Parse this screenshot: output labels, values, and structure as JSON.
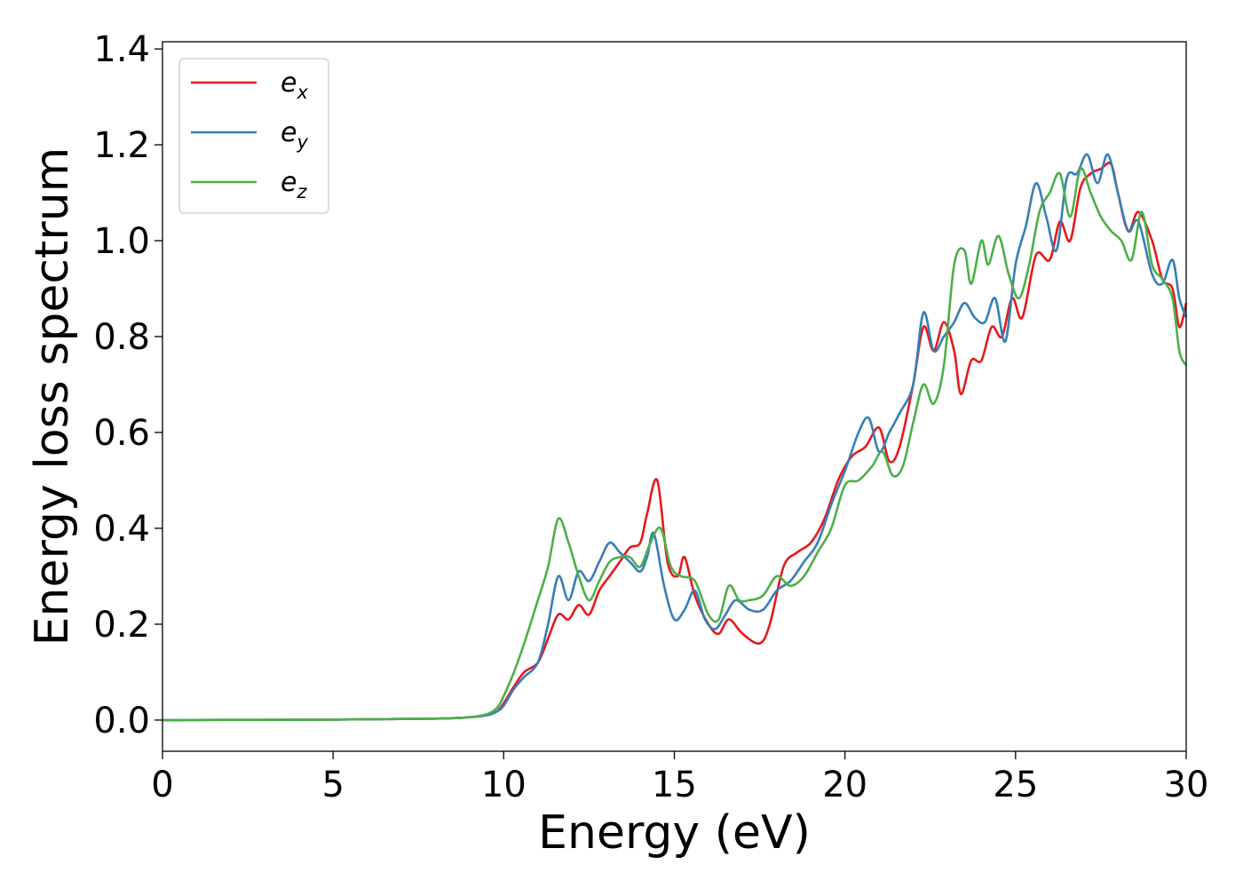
{
  "chart_data": {
    "type": "line",
    "xlabel": "Energy (eV)",
    "ylabel": "Energy loss spectrum",
    "xlim": [
      0,
      30
    ],
    "ylim": [
      -0.065,
      1.415
    ],
    "xticks": [
      "0",
      "5",
      "10",
      "15",
      "20",
      "25",
      "30"
    ],
    "yticks": [
      "0.0",
      "0.2",
      "0.4",
      "0.6",
      "0.8",
      "1.0",
      "1.2",
      "1.4"
    ],
    "grid": false,
    "legend_position": "top-left",
    "series": [
      {
        "name": "e",
        "subscript": "x",
        "color": "#e41a1c",
        "points": [
          [
            0,
            0.0
          ],
          [
            5,
            0.001
          ],
          [
            8,
            0.003
          ],
          [
            9,
            0.006
          ],
          [
            9.5,
            0.01
          ],
          [
            9.8,
            0.018
          ],
          [
            10,
            0.035
          ],
          [
            10.3,
            0.07
          ],
          [
            10.6,
            0.1
          ],
          [
            11,
            0.12
          ],
          [
            11.3,
            0.17
          ],
          [
            11.6,
            0.22
          ],
          [
            11.9,
            0.21
          ],
          [
            12.2,
            0.24
          ],
          [
            12.5,
            0.22
          ],
          [
            12.8,
            0.27
          ],
          [
            13.1,
            0.3
          ],
          [
            13.4,
            0.33
          ],
          [
            13.7,
            0.36
          ],
          [
            14,
            0.37
          ],
          [
            14.2,
            0.43
          ],
          [
            14.5,
            0.5
          ],
          [
            14.8,
            0.33
          ],
          [
            15.1,
            0.3
          ],
          [
            15.3,
            0.34
          ],
          [
            15.6,
            0.26
          ],
          [
            16,
            0.2
          ],
          [
            16.3,
            0.18
          ],
          [
            16.6,
            0.21
          ],
          [
            17,
            0.18
          ],
          [
            17.5,
            0.16
          ],
          [
            17.8,
            0.2
          ],
          [
            18.2,
            0.32
          ],
          [
            18.6,
            0.35
          ],
          [
            19,
            0.37
          ],
          [
            19.4,
            0.42
          ],
          [
            19.8,
            0.5
          ],
          [
            20.2,
            0.55
          ],
          [
            20.6,
            0.57
          ],
          [
            21,
            0.61
          ],
          [
            21.3,
            0.54
          ],
          [
            21.6,
            0.57
          ],
          [
            22,
            0.7
          ],
          [
            22.3,
            0.82
          ],
          [
            22.6,
            0.77
          ],
          [
            22.9,
            0.83
          ],
          [
            23.2,
            0.77
          ],
          [
            23.4,
            0.68
          ],
          [
            23.7,
            0.75
          ],
          [
            24,
            0.75
          ],
          [
            24.3,
            0.82
          ],
          [
            24.6,
            0.8
          ],
          [
            24.9,
            0.88
          ],
          [
            25.2,
            0.84
          ],
          [
            25.6,
            0.97
          ],
          [
            26,
            0.96
          ],
          [
            26.3,
            1.04
          ],
          [
            26.6,
            1.0
          ],
          [
            26.9,
            1.11
          ],
          [
            27.2,
            1.14
          ],
          [
            27.5,
            1.15
          ],
          [
            27.8,
            1.16
          ],
          [
            28,
            1.1
          ],
          [
            28.3,
            1.02
          ],
          [
            28.6,
            1.06
          ],
          [
            29,
            1.0
          ],
          [
            29.3,
            0.92
          ],
          [
            29.6,
            0.9
          ],
          [
            29.8,
            0.82
          ],
          [
            30,
            0.87
          ]
        ]
      },
      {
        "name": "e",
        "subscript": "y",
        "color": "#377eb8",
        "points": [
          [
            0,
            0.0
          ],
          [
            5,
            0.001
          ],
          [
            8,
            0.003
          ],
          [
            9,
            0.006
          ],
          [
            9.5,
            0.01
          ],
          [
            9.8,
            0.018
          ],
          [
            10,
            0.03
          ],
          [
            10.3,
            0.065
          ],
          [
            10.6,
            0.09
          ],
          [
            11,
            0.12
          ],
          [
            11.3,
            0.2
          ],
          [
            11.6,
            0.3
          ],
          [
            11.9,
            0.25
          ],
          [
            12.2,
            0.31
          ],
          [
            12.5,
            0.29
          ],
          [
            12.8,
            0.33
          ],
          [
            13.1,
            0.37
          ],
          [
            13.4,
            0.35
          ],
          [
            13.7,
            0.33
          ],
          [
            14,
            0.31
          ],
          [
            14.2,
            0.34
          ],
          [
            14.4,
            0.39
          ],
          [
            14.7,
            0.28
          ],
          [
            15,
            0.21
          ],
          [
            15.3,
            0.23
          ],
          [
            15.6,
            0.27
          ],
          [
            15.9,
            0.21
          ],
          [
            16.2,
            0.19
          ],
          [
            16.5,
            0.22
          ],
          [
            16.8,
            0.25
          ],
          [
            17.2,
            0.23
          ],
          [
            17.6,
            0.23
          ],
          [
            18,
            0.27
          ],
          [
            18.4,
            0.29
          ],
          [
            18.8,
            0.33
          ],
          [
            19.2,
            0.37
          ],
          [
            19.6,
            0.45
          ],
          [
            20,
            0.52
          ],
          [
            20.4,
            0.6
          ],
          [
            20.7,
            0.63
          ],
          [
            21,
            0.56
          ],
          [
            21.3,
            0.6
          ],
          [
            21.6,
            0.64
          ],
          [
            22,
            0.7
          ],
          [
            22.3,
            0.85
          ],
          [
            22.6,
            0.77
          ],
          [
            22.9,
            0.8
          ],
          [
            23.2,
            0.83
          ],
          [
            23.5,
            0.87
          ],
          [
            23.8,
            0.84
          ],
          [
            24.1,
            0.83
          ],
          [
            24.4,
            0.88
          ],
          [
            24.7,
            0.79
          ],
          [
            25,
            0.95
          ],
          [
            25.3,
            1.03
          ],
          [
            25.6,
            1.12
          ],
          [
            25.9,
            1.05
          ],
          [
            26.2,
            0.98
          ],
          [
            26.5,
            1.13
          ],
          [
            26.8,
            1.14
          ],
          [
            27.1,
            1.18
          ],
          [
            27.4,
            1.12
          ],
          [
            27.7,
            1.18
          ],
          [
            28,
            1.1
          ],
          [
            28.3,
            1.02
          ],
          [
            28.6,
            1.04
          ],
          [
            29,
            0.93
          ],
          [
            29.3,
            0.91
          ],
          [
            29.6,
            0.96
          ],
          [
            29.8,
            0.88
          ],
          [
            30,
            0.84
          ]
        ]
      },
      {
        "name": "e",
        "subscript": "z",
        "color": "#4daf4a",
        "points": [
          [
            0,
            0.0
          ],
          [
            5,
            0.001
          ],
          [
            8,
            0.003
          ],
          [
            9,
            0.006
          ],
          [
            9.5,
            0.012
          ],
          [
            9.8,
            0.025
          ],
          [
            10,
            0.05
          ],
          [
            10.3,
            0.1
          ],
          [
            10.6,
            0.16
          ],
          [
            11,
            0.25
          ],
          [
            11.3,
            0.32
          ],
          [
            11.6,
            0.42
          ],
          [
            11.9,
            0.37
          ],
          [
            12.2,
            0.3
          ],
          [
            12.5,
            0.25
          ],
          [
            12.8,
            0.29
          ],
          [
            13.1,
            0.33
          ],
          [
            13.4,
            0.34
          ],
          [
            13.7,
            0.34
          ],
          [
            14,
            0.32
          ],
          [
            14.3,
            0.37
          ],
          [
            14.6,
            0.4
          ],
          [
            14.9,
            0.32
          ],
          [
            15.2,
            0.3
          ],
          [
            15.6,
            0.29
          ],
          [
            16,
            0.22
          ],
          [
            16.3,
            0.21
          ],
          [
            16.6,
            0.28
          ],
          [
            16.9,
            0.25
          ],
          [
            17.2,
            0.25
          ],
          [
            17.6,
            0.26
          ],
          [
            18,
            0.3
          ],
          [
            18.4,
            0.28
          ],
          [
            18.8,
            0.3
          ],
          [
            19.2,
            0.35
          ],
          [
            19.6,
            0.4
          ],
          [
            20,
            0.49
          ],
          [
            20.4,
            0.5
          ],
          [
            20.8,
            0.53
          ],
          [
            21.1,
            0.56
          ],
          [
            21.4,
            0.51
          ],
          [
            21.7,
            0.53
          ],
          [
            22,
            0.62
          ],
          [
            22.3,
            0.7
          ],
          [
            22.6,
            0.66
          ],
          [
            22.9,
            0.74
          ],
          [
            23.2,
            0.95
          ],
          [
            23.5,
            0.98
          ],
          [
            23.7,
            0.91
          ],
          [
            24,
            1.0
          ],
          [
            24.2,
            0.95
          ],
          [
            24.5,
            1.01
          ],
          [
            24.8,
            0.93
          ],
          [
            25.1,
            0.88
          ],
          [
            25.4,
            0.95
          ],
          [
            25.7,
            1.06
          ],
          [
            26,
            1.1
          ],
          [
            26.3,
            1.14
          ],
          [
            26.6,
            1.05
          ],
          [
            26.9,
            1.15
          ],
          [
            27.2,
            1.1
          ],
          [
            27.5,
            1.05
          ],
          [
            27.8,
            1.02
          ],
          [
            28.1,
            1.0
          ],
          [
            28.4,
            0.96
          ],
          [
            28.7,
            1.06
          ],
          [
            29,
            0.95
          ],
          [
            29.3,
            0.92
          ],
          [
            29.6,
            0.88
          ],
          [
            29.8,
            0.77
          ],
          [
            30,
            0.74
          ]
        ]
      }
    ]
  }
}
